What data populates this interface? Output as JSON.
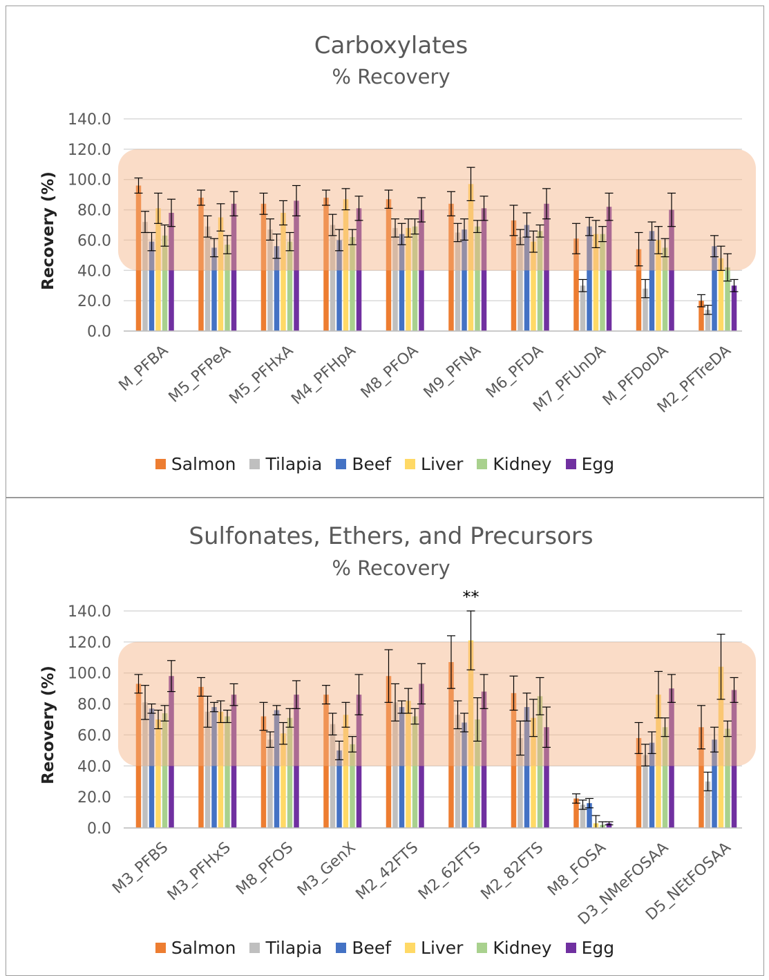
{
  "colors": {
    "Salmon": "#ed7d31",
    "Tilapia": "#bfbfbf",
    "Beef": "#4472c4",
    "Liver": "#ffd966",
    "Kidney": "#a9d18e",
    "Egg": "#7030a0",
    "band": "#f4b183",
    "grid": "#d9d9d9"
  },
  "chart_data": [
    {
      "type": "bar",
      "title": "Carboxylates",
      "subtitle": "% Recovery",
      "ylabel": "Recovery (%)",
      "xlabel": "",
      "ylim": [
        0,
        140
      ],
      "yticks": [
        "0.0",
        "20.0",
        "40.0",
        "60.0",
        "80.0",
        "100.0",
        "120.0",
        "140.0"
      ],
      "acceptance_band": [
        40,
        120
      ],
      "grid": true,
      "legend": "bottom",
      "categories": [
        "M_PFBA",
        "M5_PFPeA",
        "M5_PFHxA",
        "M4_PFHpA",
        "M8_PFOA",
        "M9_PFNA",
        "M6_PFDA",
        "M7_PFUnDA",
        "M_PFDoDA",
        "M2_PFTreDA"
      ],
      "series": [
        {
          "name": "Salmon",
          "values": [
            96,
            88,
            84,
            88,
            87,
            84,
            73,
            61,
            54,
            20
          ],
          "errors": [
            5,
            5,
            7,
            5,
            6,
            8,
            10,
            10,
            11,
            4
          ]
        },
        {
          "name": "Tilapia",
          "values": [
            72,
            69,
            67,
            70,
            68,
            65,
            62,
            30,
            28,
            14
          ],
          "errors": [
            7,
            7,
            7,
            7,
            6,
            6,
            5,
            4,
            6,
            3
          ]
        },
        {
          "name": "Beef",
          "values": [
            59,
            55,
            56,
            60,
            64,
            67,
            70,
            69,
            66,
            56
          ],
          "errors": [
            6,
            6,
            8,
            7,
            7,
            7,
            8,
            6,
            6,
            7
          ]
        },
        {
          "name": "Liver",
          "values": [
            81,
            75,
            78,
            87,
            68,
            97,
            59,
            64,
            60,
            48
          ],
          "errors": [
            10,
            9,
            8,
            7,
            6,
            11,
            7,
            9,
            9,
            8
          ]
        },
        {
          "name": "Kidney",
          "values": [
            63,
            57,
            59,
            62,
            69,
            69,
            66,
            64,
            55,
            42
          ],
          "errors": [
            7,
            6,
            6,
            5,
            5,
            4,
            4,
            5,
            6,
            9
          ]
        },
        {
          "name": "Egg",
          "values": [
            78,
            84,
            86,
            81,
            80,
            81,
            84,
            82,
            80,
            30
          ],
          "errors": [
            9,
            8,
            10,
            8,
            8,
            8,
            10,
            9,
            11,
            4
          ]
        }
      ]
    },
    {
      "type": "bar",
      "title": "Sulfonates, Ethers, and Precursors",
      "subtitle": "% Recovery",
      "ylabel": "Recovery (%)",
      "xlabel": "",
      "ylim": [
        0,
        140
      ],
      "yticks": [
        "0.0",
        "20.0",
        "40.0",
        "60.0",
        "80.0",
        "100.0",
        "120.0",
        "140.0"
      ],
      "acceptance_band": [
        40,
        120
      ],
      "grid": true,
      "legend": "bottom",
      "annotation": {
        "text": "**",
        "category": "M2_62FTS",
        "series": "Liver"
      },
      "categories": [
        "M3_PFBS",
        "M3_PFHxS",
        "M8_PFOS",
        "M3_GenX",
        "M2_42FTS",
        "M2_62FTS",
        "M2_82FTS",
        "M8_FOSA",
        "D3_NMeFOSAA",
        "D5_NEtFOSAA"
      ],
      "series": [
        {
          "name": "Salmon",
          "values": [
            93,
            91,
            72,
            86,
            98,
            107,
            87,
            19,
            58,
            65
          ],
          "errors": [
            6,
            6,
            9,
            6,
            17,
            17,
            11,
            3,
            10,
            14
          ]
        },
        {
          "name": "Tilapia",
          "values": [
            81,
            75,
            57,
            67,
            81,
            73,
            58,
            15,
            47,
            30
          ],
          "errors": [
            11,
            10,
            5,
            7,
            12,
            9,
            11,
            3,
            7,
            6
          ]
        },
        {
          "name": "Beef",
          "values": [
            77,
            78,
            76,
            50,
            78,
            68,
            78,
            16,
            55,
            57
          ],
          "errors": [
            3,
            3,
            3,
            6,
            4,
            6,
            9,
            3,
            7,
            8
          ]
        },
        {
          "name": "Liver",
          "values": [
            70,
            75,
            61,
            73,
            82,
            121,
            71,
            3,
            86,
            104
          ],
          "errors": [
            6,
            7,
            7,
            8,
            8,
            19,
            12,
            5,
            15,
            21
          ]
        },
        {
          "name": "Kidney",
          "values": [
            74,
            72,
            71,
            54,
            72,
            70,
            85,
            2,
            65,
            64
          ],
          "errors": [
            5,
            4,
            6,
            5,
            5,
            14,
            12,
            2,
            6,
            5
          ]
        },
        {
          "name": "Egg",
          "values": [
            98,
            86,
            86,
            86,
            93,
            88,
            65,
            3,
            90,
            89
          ],
          "errors": [
            10,
            7,
            9,
            13,
            13,
            11,
            13,
            1,
            9,
            8
          ]
        }
      ]
    }
  ],
  "legends": [
    [
      {
        "label": "Salmon",
        "color": "#ed7d31"
      },
      {
        "label": "Tilapia",
        "color": "#bfbfbf"
      },
      {
        "label": "Beef",
        "color": "#4472c4"
      },
      {
        "label": "Liver",
        "color": "#ffd966"
      },
      {
        "label": "Kidney",
        "color": "#a9d18e"
      },
      {
        "label": "Egg",
        "color": "#7030a0"
      }
    ],
    [
      {
        "label": "Salmon",
        "color": "#ed7d31"
      },
      {
        "label": "Tilapia",
        "color": "#bfbfbf"
      },
      {
        "label": "Beef",
        "color": "#4472c4"
      },
      {
        "label": "Liver",
        "color": "#ffd966"
      },
      {
        "label": "Kidney",
        "color": "#a9d18e"
      },
      {
        "label": "Egg",
        "color": "#7030a0"
      }
    ]
  ]
}
